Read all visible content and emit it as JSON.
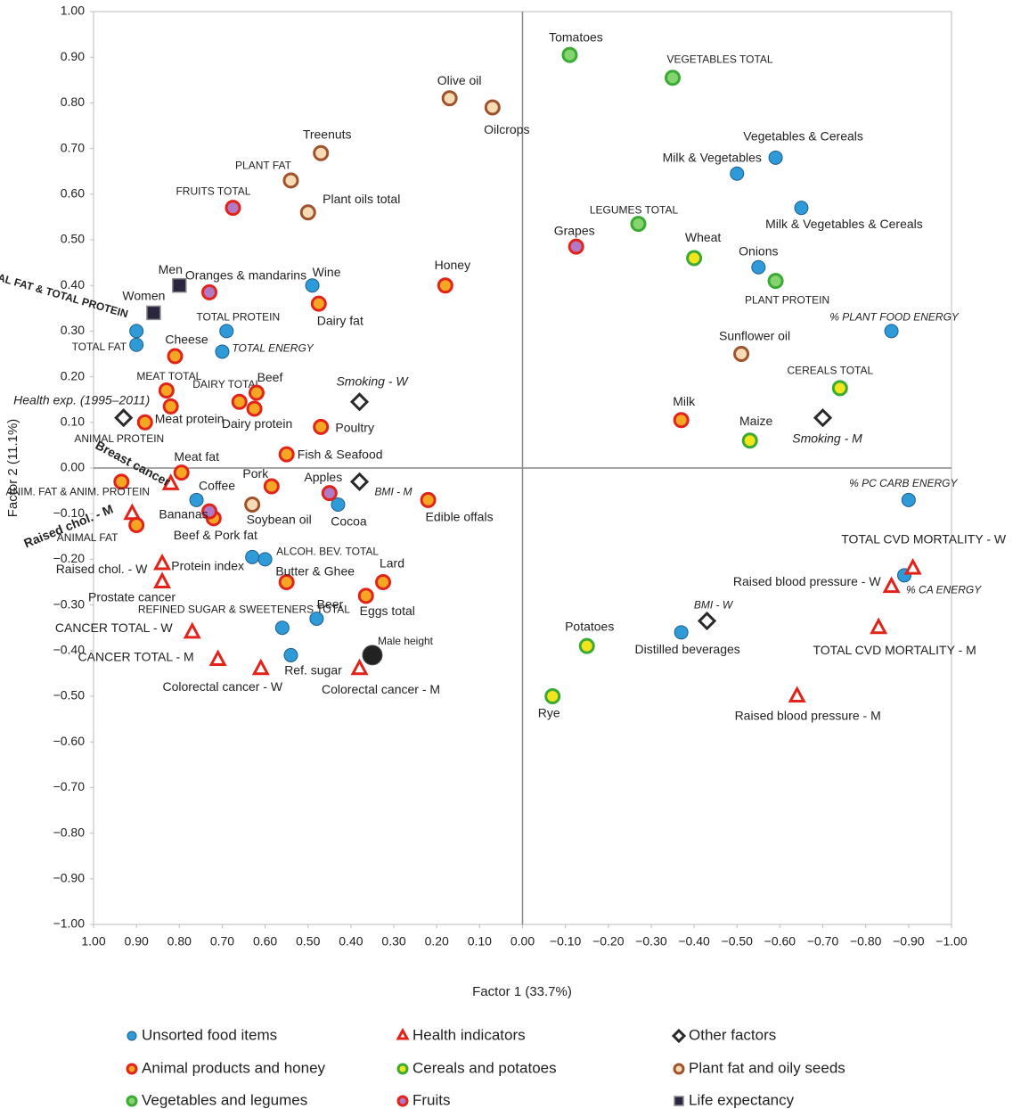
{
  "chart_data": {
    "type": "scatter",
    "x_label": "Factor 1 (33.7%)",
    "y_label": "Factor 2 (11.1%)",
    "xlim": [
      1.0,
      -1.0
    ],
    "ylim": [
      -1.0,
      1.0
    ],
    "xticks": [
      {
        "value": 1.0,
        "label": "1.00"
      },
      {
        "value": 0.9,
        "label": "0.90"
      },
      {
        "value": 0.8,
        "label": "0.80"
      },
      {
        "value": 0.7,
        "label": "0.70"
      },
      {
        "value": 0.6,
        "label": "0.60"
      },
      {
        "value": 0.5,
        "label": "0.50"
      },
      {
        "value": 0.4,
        "label": "0.40"
      },
      {
        "value": 0.3,
        "label": "0.30"
      },
      {
        "value": 0.2,
        "label": "0.20"
      },
      {
        "value": 0.1,
        "label": "0.10"
      },
      {
        "value": 0,
        "label": "0.00"
      },
      {
        "value": -0.1,
        "label": "−0.10"
      },
      {
        "value": -0.2,
        "label": "−0.20"
      },
      {
        "value": -0.3,
        "label": "−0.30"
      },
      {
        "value": -0.4,
        "label": "−0.40"
      },
      {
        "value": -0.5,
        "label": "−0.50"
      },
      {
        "value": -0.6,
        "label": "−0.60"
      },
      {
        "value": -0.7,
        "label": "−0.70"
      },
      {
        "value": -0.8,
        "label": "−0.80"
      },
      {
        "value": -0.9,
        "label": "−0.90"
      },
      {
        "value": -1.0,
        "label": "−1.00"
      }
    ],
    "yticks": [
      {
        "value": 1.0,
        "label": "1.00"
      },
      {
        "value": 0.9,
        "label": "0.90"
      },
      {
        "value": 0.8,
        "label": "0.80"
      },
      {
        "value": 0.7,
        "label": "0.70"
      },
      {
        "value": 0.6,
        "label": "0.60"
      },
      {
        "value": 0.5,
        "label": "0.50"
      },
      {
        "value": 0.4,
        "label": "0.40"
      },
      {
        "value": 0.3,
        "label": "0.30"
      },
      {
        "value": 0.2,
        "label": "0.20"
      },
      {
        "value": 0.1,
        "label": "0.10"
      },
      {
        "value": 0,
        "label": "0.00"
      },
      {
        "value": -0.1,
        "label": "−0.10"
      },
      {
        "value": -0.2,
        "label": "−0.20"
      },
      {
        "value": -0.3,
        "label": "−0.30"
      },
      {
        "value": -0.4,
        "label": "−0.40"
      },
      {
        "value": -0.5,
        "label": "−0.50"
      },
      {
        "value": -0.6,
        "label": "−0.60"
      },
      {
        "value": -0.7,
        "label": "−0.70"
      },
      {
        "value": -0.8,
        "label": "−0.80"
      },
      {
        "value": -0.9,
        "label": "−0.90"
      },
      {
        "value": -1.0,
        "label": "−1.00"
      }
    ],
    "series": [
      {
        "name": "Unsorted food items",
        "marker": "circle",
        "color": "#1f5f8b",
        "fill": "#2f9ad8",
        "labels": [
          "Vegetables & Cereals",
          "Milk & Vegetables",
          "Milk & Vegetables & Cereals",
          "Onions",
          "% PLANT FOOD ENERGY",
          "% PC CARB ENERGY",
          "% CA ENERGY",
          "Distilled beverages",
          "Wine",
          "TOTAL PROTEIN",
          "TOTAL ENERGY",
          "TOTAL FAT & TOTAL PROTEIN",
          "TOTAL FAT",
          "Coffee",
          "Cocoa",
          "Protein index",
          "ALCOH. BEV. TOTAL",
          "Beer",
          "REFINED SUGAR & SWEETENERS TOTAL",
          "Ref. sugar"
        ],
        "x": [
          -0.59,
          -0.5,
          -0.65,
          -0.55,
          -0.86,
          -0.9,
          -0.89,
          -0.37,
          0.49,
          0.69,
          0.7,
          0.9,
          0.9,
          0.76,
          0.43,
          0.63,
          0.6,
          0.48,
          0.56,
          0.54
        ],
        "y": [
          0.68,
          0.645,
          0.57,
          0.44,
          0.3,
          -0.07,
          -0.235,
          -0.36,
          0.4,
          0.3,
          0.255,
          0.3,
          0.27,
          -0.07,
          -0.08,
          -0.195,
          -0.2,
          -0.33,
          -0.35,
          -0.41
        ]
      },
      {
        "name": "Health indicators",
        "marker": "triangle",
        "color": "#e2231a",
        "fill": "#ffffff",
        "labels": [
          "TOTAL CVD MORTALITY - W",
          "Raised blood pressure - W",
          "TOTAL CVD MORTALITY - M",
          "Raised blood pressure - M",
          "Breast cancer",
          "Raised chol. - M",
          "Raised chol. - W",
          "Prostate cancer",
          "CANCER TOTAL - W",
          "CANCER TOTAL - M",
          "Colorectal cancer - W",
          "Colorectal cancer - M"
        ],
        "x": [
          -0.91,
          -0.86,
          -0.83,
          -0.64,
          0.82,
          0.91,
          0.84,
          0.84,
          0.77,
          0.71,
          0.61,
          0.38
        ],
        "y": [
          -0.22,
          -0.26,
          -0.35,
          -0.5,
          -0.035,
          -0.1,
          -0.21,
          -0.25,
          -0.36,
          -0.42,
          -0.44,
          -0.44
        ]
      },
      {
        "name": "Other factors",
        "marker": "diamond",
        "color": "#2a2a2a",
        "fill": "#ffffff",
        "labels": [
          "Health exp. (1995–2011)",
          "Smoking - W",
          "BMI - M",
          "Smoking - M",
          "BMI - W"
        ],
        "x": [
          0.93,
          0.38,
          0.38,
          -0.7,
          -0.43
        ],
        "y": [
          0.11,
          0.145,
          -0.03,
          0.11,
          -0.335
        ]
      },
      {
        "name": "Animal products and honey",
        "marker": "circle",
        "color": "#e2231a",
        "fill": "#f5a623",
        "labels": [
          "Honey",
          "Dairy fat",
          "Milk",
          "Cheese",
          "MEAT TOTAL",
          "Meat protein",
          "ANIMAL PROTEIN",
          "DAIRY TOTAL",
          "Beef",
          "Dairy protein",
          "Poultry",
          "Fish & Seafood",
          "Meat fat",
          "ANIM. FAT & ANIM. PROTEIN",
          "ANIMAL FAT",
          "Pork",
          "Beef & Pork fat",
          "Edible offals",
          "Butter & Ghee",
          "Lard",
          "Eggs total"
        ],
        "x": [
          0.18,
          0.475,
          -0.37,
          0.81,
          0.83,
          0.82,
          0.88,
          0.66,
          0.62,
          0.625,
          0.47,
          0.55,
          0.795,
          0.935,
          0.9,
          0.585,
          0.72,
          0.22,
          0.55,
          0.325,
          0.365
        ],
        "y": [
          0.4,
          0.36,
          0.105,
          0.245,
          0.17,
          0.135,
          0.1,
          0.145,
          0.165,
          0.13,
          0.09,
          0.03,
          -0.01,
          -0.03,
          -0.125,
          -0.04,
          -0.11,
          -0.07,
          -0.25,
          -0.25,
          -0.28
        ]
      },
      {
        "name": "Cereals and potatoes",
        "marker": "circle",
        "color": "#3aaa35",
        "fill": "#f2e51c",
        "labels": [
          "Wheat",
          "Maize",
          "CEREALS TOTAL",
          "Potatoes",
          "Rye"
        ],
        "x": [
          -0.4,
          -0.53,
          -0.74,
          -0.15,
          -0.07
        ],
        "y": [
          0.46,
          0.06,
          0.175,
          -0.39,
          -0.5
        ]
      },
      {
        "name": "Plant fat and oily seeds",
        "marker": "circle",
        "color": "#a0522d",
        "fill": "#f5dcb4",
        "labels": [
          "Olive oil",
          "Oilcrops",
          "Treenuts",
          "PLANT FAT",
          "Plant oils total",
          "Sunflower oil",
          "Soybean oil"
        ],
        "x": [
          0.17,
          0.07,
          0.47,
          0.54,
          0.5,
          -0.51,
          0.63
        ],
        "y": [
          0.81,
          0.79,
          0.69,
          0.63,
          0.56,
          0.25,
          -0.08
        ]
      },
      {
        "name": "Vegetables and legumes",
        "marker": "circle",
        "color": "#3aaa35",
        "fill": "#86d46f",
        "labels": [
          "Tomatoes",
          "VEGETABLES TOTAL",
          "LEGUMES TOTAL",
          "PLANT PROTEIN"
        ],
        "x": [
          -0.11,
          -0.35,
          -0.27,
          -0.59
        ],
        "y": [
          0.905,
          0.855,
          0.535,
          0.41
        ]
      },
      {
        "name": "Fruits",
        "marker": "circle",
        "color": "#e2231a",
        "fill": "#b07ac4",
        "labels": [
          "FRUITS TOTAL",
          "Oranges & mandarins",
          "Grapes",
          "Apples",
          "Bananas"
        ],
        "x": [
          0.675,
          0.73,
          -0.125,
          0.45,
          0.73
        ],
        "y": [
          0.57,
          0.385,
          0.485,
          -0.055,
          -0.095
        ]
      },
      {
        "name": "Life expectancy",
        "marker": "square",
        "color": "#8a8a8a",
        "fill": "#2b2540",
        "labels": [
          "Men",
          "Women"
        ],
        "x": [
          0.8,
          0.86
        ],
        "y": [
          0.4,
          0.34
        ]
      }
    ],
    "extra_point": {
      "label": "Male height",
      "x": 0.35,
      "y": -0.41,
      "color": "#222222"
    }
  }
}
